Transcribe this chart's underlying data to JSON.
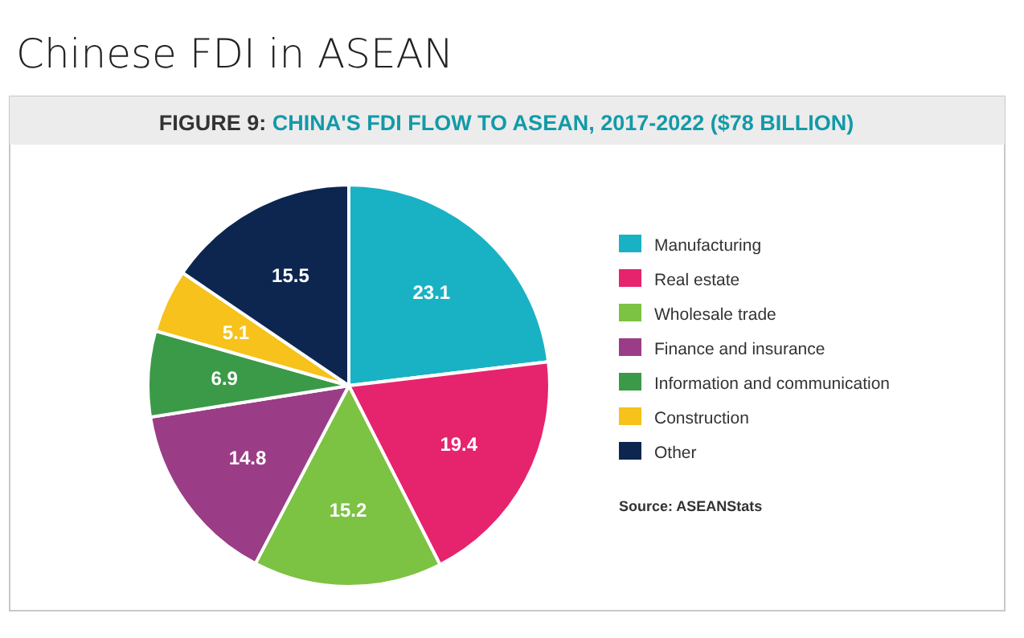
{
  "chart_data": {
    "type": "pie",
    "title": "Chinese FDI in ASEAN",
    "subtitle": "FIGURE 9: CHINA'S FDI FLOW TO ASEAN, 2017-2022 ($78 BILLION)",
    "categories": [
      "Manufacturing",
      "Real estate",
      "Wholesale trade",
      "Finance and insurance",
      "Information and communication",
      "Construction",
      "Other"
    ],
    "values": [
      23.1,
      19.4,
      15.2,
      14.8,
      6.9,
      5.1,
      15.5
    ],
    "colors": [
      "#19b2c4",
      "#e6246e",
      "#7cc243",
      "#9a3d86",
      "#3b9a48",
      "#f6c21b",
      "#0c2650"
    ],
    "data_labels": true,
    "legend": "right",
    "annotations": [
      "Source: ASEANStats"
    ]
  }
}
